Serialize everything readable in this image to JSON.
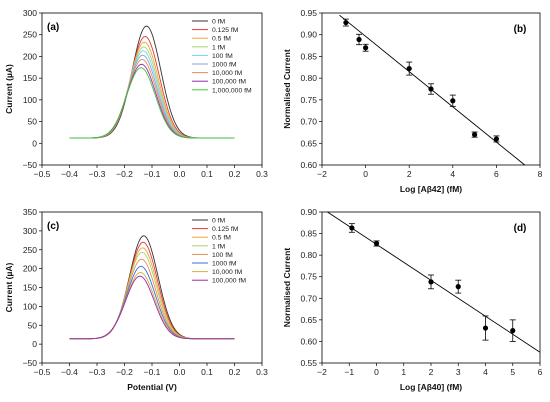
{
  "chart_data": [
    {
      "type": "line",
      "panel_label": "(a)",
      "xlabel": "",
      "ylabel": "Current (µA)",
      "xlim": [
        -0.5,
        0.3
      ],
      "ylim": [
        -50,
        300
      ],
      "x_ticks": [
        "−0.5",
        "−0.4",
        "−0.3",
        "−0.2",
        "−0.1",
        "0.0",
        "0.1",
        "0.2",
        "0.3"
      ],
      "y_ticks": [
        "−50",
        "0",
        "50",
        "100",
        "150",
        "200",
        "250",
        "300"
      ],
      "legend_position": "top-right",
      "x_range": [
        -0.4,
        0.2
      ],
      "series": [
        {
          "name": "0 fM",
          "color": "#333333",
          "baseline": 12,
          "peak": 270,
          "peak_x": -0.12
        },
        {
          "name": "0.125 fM",
          "color": "#e53935",
          "baseline": 12,
          "peak": 246,
          "peak_x": -0.125
        },
        {
          "name": "0.5 fM",
          "color": "#f4a236",
          "baseline": 12,
          "peak": 233,
          "peak_x": -0.128
        },
        {
          "name": "1 fM",
          "color": "#a7d36b",
          "baseline": 12,
          "peak": 222,
          "peak_x": -0.13
        },
        {
          "name": "100 fM",
          "color": "#6fd6ee",
          "baseline": 12,
          "peak": 213,
          "peak_x": -0.132
        },
        {
          "name": "1000 fM",
          "color": "#8a9fd6",
          "baseline": 12,
          "peak": 203,
          "peak_x": -0.134
        },
        {
          "name": "10,000 fM",
          "color": "#e88a5a",
          "baseline": 12,
          "peak": 193,
          "peak_x": -0.136
        },
        {
          "name": "100,000 fM",
          "color": "#9c27b0",
          "baseline": 12,
          "peak": 182,
          "peak_x": -0.138
        },
        {
          "name": "1,000,000 fM",
          "color": "#3ac93a",
          "baseline": 12,
          "peak": 174,
          "peak_x": -0.14
        }
      ]
    },
    {
      "type": "scatter",
      "panel_label": "(b)",
      "xlabel": "Log [Aβ42] (fM)",
      "ylabel": "Normalised Current",
      "xlim": [
        -2,
        8
      ],
      "ylim": [
        0.6,
        0.95
      ],
      "x_ticks": [
        "−2",
        "0",
        "2",
        "4",
        "6",
        "8"
      ],
      "y_ticks": [
        "0.60",
        "0.65",
        "0.70",
        "0.75",
        "0.80",
        "0.85",
        "0.90",
        "0.95"
      ],
      "points": [
        {
          "x": -0.903,
          "y": 0.928,
          "err": 0.008
        },
        {
          "x": -0.301,
          "y": 0.889,
          "err": 0.012
        },
        {
          "x": 0,
          "y": 0.87,
          "err": 0.008
        },
        {
          "x": 2,
          "y": 0.822,
          "err": 0.015
        },
        {
          "x": 3,
          "y": 0.775,
          "err": 0.012
        },
        {
          "x": 4,
          "y": 0.748,
          "err": 0.013
        },
        {
          "x": 5,
          "y": 0.67,
          "err": 0.006
        },
        {
          "x": 6,
          "y": 0.66,
          "err": 0.007
        }
      ],
      "fit": {
        "x": [
          -1.2,
          7.3
        ],
        "y": [
          0.945,
          0.6
        ]
      }
    },
    {
      "type": "line",
      "panel_label": "(c)",
      "xlabel": "Potential (V)",
      "ylabel": "Current (µA)",
      "xlim": [
        -0.5,
        0.3
      ],
      "ylim": [
        -50,
        350
      ],
      "x_ticks": [
        "−0.5",
        "−0.4",
        "−0.3",
        "−0.2",
        "−0.1",
        "0.0",
        "0.1",
        "0.2",
        "0.3"
      ],
      "y_ticks": [
        "−50",
        "0",
        "50",
        "100",
        "150",
        "200",
        "250",
        "300",
        "350"
      ],
      "legend_position": "top-right",
      "x_range": [
        -0.4,
        0.2
      ],
      "series": [
        {
          "name": "0 fM",
          "color": "#333333",
          "baseline": 14,
          "peak": 287,
          "peak_x": -0.13
        },
        {
          "name": "0.125 fM",
          "color": "#e53935",
          "baseline": 14,
          "peak": 270,
          "peak_x": -0.132
        },
        {
          "name": "0.5 fM",
          "color": "#f4a236",
          "baseline": 14,
          "peak": 255,
          "peak_x": -0.134
        },
        {
          "name": "1 fM",
          "color": "#a7d36b",
          "baseline": 14,
          "peak": 243,
          "peak_x": -0.136
        },
        {
          "name": "100 fM",
          "color": "#e88a5a",
          "baseline": 14,
          "peak": 225,
          "peak_x": -0.138
        },
        {
          "name": "1000 fM",
          "color": "#3a6fd6",
          "baseline": 14,
          "peak": 206,
          "peak_x": -0.14
        },
        {
          "name": "10,000 fM",
          "color": "#d4b23a",
          "baseline": 14,
          "peak": 190,
          "peak_x": -0.142
        },
        {
          "name": "100,000 fM",
          "color": "#9c27b0",
          "baseline": 14,
          "peak": 180,
          "peak_x": -0.144
        }
      ]
    },
    {
      "type": "scatter",
      "panel_label": "(d)",
      "xlabel": "Log [Aβ40] (fM)",
      "ylabel": "Normalised Current",
      "xlim": [
        -2,
        6
      ],
      "ylim": [
        0.55,
        0.9
      ],
      "x_ticks": [
        "−2",
        "−1",
        "0",
        "1",
        "2",
        "3",
        "4",
        "5",
        "6"
      ],
      "y_ticks": [
        "0.55",
        "0.60",
        "0.65",
        "0.70",
        "0.75",
        "0.80",
        "0.85",
        "0.90"
      ],
      "points": [
        {
          "x": -0.903,
          "y": 0.863,
          "err": 0.01
        },
        {
          "x": 0,
          "y": 0.827,
          "err": 0.006
        },
        {
          "x": 2,
          "y": 0.738,
          "err": 0.016
        },
        {
          "x": 3,
          "y": 0.727,
          "err": 0.015
        },
        {
          "x": 4,
          "y": 0.631,
          "err": 0.028
        },
        {
          "x": 5,
          "y": 0.625,
          "err": 0.025
        }
      ],
      "fit": {
        "x": [
          -1.8,
          6
        ],
        "y": [
          0.9,
          0.575
        ]
      }
    }
  ]
}
